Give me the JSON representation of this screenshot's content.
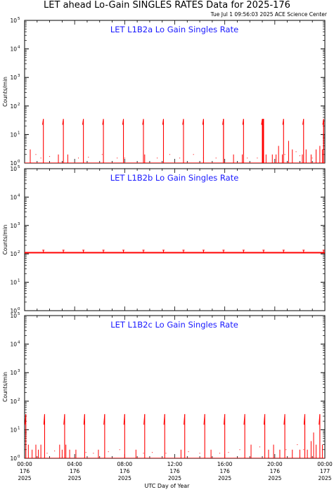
{
  "header": {
    "title": "LET ahead Lo-Gain SINGLES RATES Data for 2025-176",
    "timestamp": "Tue Jul  1 09:56:03 2025 ACE Science Center"
  },
  "chart_data": [
    {
      "type": "line",
      "title": "LET L1B2a Lo Gain Singles Rate",
      "ylabel": "Counts/min",
      "yscale": "log",
      "ylim": [
        1,
        100000
      ],
      "xlim": [
        0,
        24
      ],
      "baseline": 1,
      "spikes": {
        "start": 1.5,
        "every": 1.6,
        "peak": 35,
        "base": 22
      },
      "extra_spikes": [
        15.9,
        19.0,
        19.05,
        19.1
      ],
      "bursts": [
        {
          "x": 0.45,
          "v": 3
        },
        {
          "x": 2.7,
          "v": 2
        },
        {
          "x": 3.45,
          "v": 2
        },
        {
          "x": 9.6,
          "v": 2
        },
        {
          "x": 16.7,
          "v": 2
        },
        {
          "x": 17.4,
          "v": 2
        },
        {
          "x": 19.3,
          "v": 2
        },
        {
          "x": 19.8,
          "v": 2
        },
        {
          "x": 20.1,
          "v": 2
        },
        {
          "x": 20.3,
          "v": 4
        },
        {
          "x": 20.6,
          "v": 2
        },
        {
          "x": 21.1,
          "v": 6
        },
        {
          "x": 21.4,
          "v": 3
        },
        {
          "x": 22.2,
          "v": 2
        },
        {
          "x": 22.5,
          "v": 3
        },
        {
          "x": 22.9,
          "v": 2
        },
        {
          "x": 23.3,
          "v": 3
        },
        {
          "x": 23.6,
          "v": 4
        },
        {
          "x": 23.8,
          "v": 3
        },
        {
          "x": 23.9,
          "v": 30
        }
      ],
      "dots": [
        [
          0.9,
          2
        ],
        [
          1.3,
          1.5
        ],
        [
          2.0,
          1.7
        ],
        [
          4.3,
          1.5
        ],
        [
          5.1,
          1.6
        ],
        [
          6.2,
          2
        ],
        [
          7.4,
          1.5
        ],
        [
          8.0,
          1.5
        ],
        [
          10.6,
          1.5
        ],
        [
          11.1,
          1.8
        ],
        [
          11.6,
          2
        ],
        [
          12.4,
          1.5
        ],
        [
          13.5,
          2
        ],
        [
          14.3,
          1.5
        ],
        [
          15.3,
          1.5
        ],
        [
          17.8,
          1.5
        ],
        [
          18.6,
          1.5
        ],
        [
          20.8,
          2
        ],
        [
          21.7,
          2.5
        ],
        [
          22.0,
          1.8
        ],
        [
          23.0,
          1.5
        ]
      ]
    },
    {
      "type": "line",
      "title": "LET L1B2b Lo Gain Singles Rate",
      "ylabel": "Counts/min",
      "yscale": "log",
      "ylim": [
        1,
        100000
      ],
      "xlim": [
        0,
        24
      ],
      "baseline": 110,
      "spikes": {
        "start": 1.5,
        "every": 1.6,
        "peak": 135,
        "base": 110
      },
      "extra_spikes": [],
      "bursts": [],
      "dots": []
    },
    {
      "type": "line",
      "title": "LET L1B2c Lo Gain Singles Rate",
      "ylabel": "Counts/min",
      "yscale": "log",
      "ylim": [
        1,
        100000
      ],
      "xlim": [
        0,
        24
      ],
      "baseline": 1,
      "spikes": {
        "start": 1.6,
        "every": 1.6,
        "peak": 35,
        "base": 15
      },
      "extra_spikes": [
        0.1,
        23.6
      ],
      "bursts": [
        {
          "x": 0.3,
          "v": 3
        },
        {
          "x": 0.6,
          "v": 2
        },
        {
          "x": 0.9,
          "v": 3
        },
        {
          "x": 1.1,
          "v": 2
        },
        {
          "x": 1.3,
          "v": 3
        },
        {
          "x": 2.8,
          "v": 3
        },
        {
          "x": 3.0,
          "v": 2
        },
        {
          "x": 3.3,
          "v": 3
        },
        {
          "x": 3.6,
          "v": 2
        },
        {
          "x": 4.1,
          "v": 2
        },
        {
          "x": 5.9,
          "v": 2
        },
        {
          "x": 8.9,
          "v": 2
        },
        {
          "x": 12.5,
          "v": 2
        },
        {
          "x": 14.9,
          "v": 2
        },
        {
          "x": 18.1,
          "v": 3
        },
        {
          "x": 19.5,
          "v": 2
        },
        {
          "x": 19.9,
          "v": 3
        },
        {
          "x": 20.4,
          "v": 2
        },
        {
          "x": 21.4,
          "v": 2
        },
        {
          "x": 22.0,
          "v": 2
        },
        {
          "x": 22.6,
          "v": 2
        },
        {
          "x": 22.9,
          "v": 4
        },
        {
          "x": 23.1,
          "v": 8
        },
        {
          "x": 23.3,
          "v": 3
        },
        {
          "x": 23.8,
          "v": 3
        }
      ],
      "dots": [
        [
          1.8,
          1.5
        ],
        [
          2.4,
          1.8
        ],
        [
          4.9,
          1.6
        ],
        [
          5.5,
          1.5
        ],
        [
          6.7,
          1.7
        ],
        [
          7.6,
          2
        ],
        [
          9.5,
          1.5
        ],
        [
          10.2,
          1.6
        ],
        [
          11.3,
          1.5
        ],
        [
          13.1,
          1.7
        ],
        [
          14.0,
          1.5
        ],
        [
          15.6,
          1.5
        ],
        [
          16.3,
          1.6
        ],
        [
          17.2,
          2
        ],
        [
          18.8,
          2.5
        ],
        [
          20.9,
          2
        ],
        [
          21.8,
          3
        ],
        [
          22.3,
          2
        ]
      ]
    }
  ],
  "y_ticks": [
    {
      "base": "10",
      "exp": "0"
    },
    {
      "base": "10",
      "exp": "1"
    },
    {
      "base": "10",
      "exp": "2"
    },
    {
      "base": "10",
      "exp": "3"
    },
    {
      "base": "10",
      "exp": "4"
    },
    {
      "base": "10",
      "exp": "5"
    }
  ],
  "x_ticks": [
    {
      "hour": 0,
      "time": "00:00",
      "doy": "176",
      "year": "2025"
    },
    {
      "hour": 4,
      "time": "04:00",
      "doy": "176",
      "year": "2025"
    },
    {
      "hour": 8,
      "time": "08:00",
      "doy": "176",
      "year": "2025"
    },
    {
      "hour": 12,
      "time": "12:00",
      "doy": "176",
      "year": "2025"
    },
    {
      "hour": 16,
      "time": "16:00",
      "doy": "176",
      "year": "2025"
    },
    {
      "hour": 20,
      "time": "20:00",
      "doy": "176",
      "year": "2025"
    },
    {
      "hour": 24,
      "time": "00:00",
      "doy": "177",
      "year": "2025"
    }
  ],
  "xlabel": "UTC Day of Year",
  "colors": {
    "data": "#ff0000",
    "title": "#1a1aff",
    "axes": "#000000"
  }
}
